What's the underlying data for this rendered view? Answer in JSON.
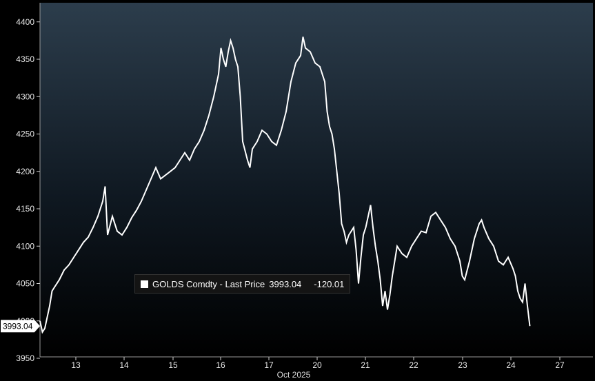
{
  "chart_data": {
    "type": "line",
    "xlabel": "Oct 2025",
    "ylim": [
      3950,
      4400
    ],
    "yticks": [
      3950,
      4000,
      4050,
      4100,
      4150,
      4200,
      4250,
      4300,
      4350,
      4400
    ],
    "ytick_labels": [
      "3950",
      "4000",
      "4050",
      "4100",
      "4150",
      "4200",
      "4250",
      "4300",
      "4350",
      "4400"
    ],
    "xticks": [
      "13",
      "14",
      "15",
      "16",
      "17",
      "20",
      "21",
      "22",
      "23",
      "24",
      "27"
    ],
    "legend": {
      "series": "GOLDS Comdty - Last Price",
      "last_price": "3993.04",
      "change": "-120.01"
    },
    "last_price_label": "3993.04",
    "series": [
      {
        "name": "GOLDS Comdty - Last Price",
        "color": "#ffffff",
        "points": [
          [
            0.0,
            4000
          ],
          [
            0.05,
            3985
          ],
          [
            0.1,
            3990
          ],
          [
            0.15,
            4005
          ],
          [
            0.2,
            4020
          ],
          [
            0.25,
            4040
          ],
          [
            0.3,
            4045
          ],
          [
            0.4,
            4055
          ],
          [
            0.5,
            4068
          ],
          [
            0.6,
            4075
          ],
          [
            0.7,
            4085
          ],
          [
            0.8,
            4095
          ],
          [
            0.9,
            4105
          ],
          [
            1.0,
            4112
          ],
          [
            1.1,
            4125
          ],
          [
            1.2,
            4140
          ],
          [
            1.3,
            4160
          ],
          [
            1.35,
            4180
          ],
          [
            1.4,
            4115
          ],
          [
            1.5,
            4140
          ],
          [
            1.6,
            4120
          ],
          [
            1.7,
            4115
          ],
          [
            1.8,
            4125
          ],
          [
            1.9,
            4138
          ],
          [
            2.0,
            4148
          ],
          [
            2.1,
            4160
          ],
          [
            2.2,
            4175
          ],
          [
            2.3,
            4190
          ],
          [
            2.4,
            4205
          ],
          [
            2.5,
            4190
          ],
          [
            2.6,
            4195
          ],
          [
            2.7,
            4200
          ],
          [
            2.8,
            4205
          ],
          [
            2.9,
            4215
          ],
          [
            3.0,
            4225
          ],
          [
            3.1,
            4215
          ],
          [
            3.2,
            4230
          ],
          [
            3.3,
            4240
          ],
          [
            3.4,
            4255
          ],
          [
            3.5,
            4275
          ],
          [
            3.6,
            4300
          ],
          [
            3.7,
            4330
          ],
          [
            3.75,
            4365
          ],
          [
            3.8,
            4350
          ],
          [
            3.85,
            4340
          ],
          [
            3.9,
            4360
          ],
          [
            3.95,
            4375
          ],
          [
            4.0,
            4365
          ],
          [
            4.05,
            4350
          ],
          [
            4.1,
            4340
          ],
          [
            4.15,
            4300
          ],
          [
            4.2,
            4240
          ],
          [
            4.3,
            4215
          ],
          [
            4.35,
            4205
          ],
          [
            4.4,
            4230
          ],
          [
            4.5,
            4240
          ],
          [
            4.6,
            4255
          ],
          [
            4.7,
            4250
          ],
          [
            4.8,
            4240
          ],
          [
            4.9,
            4235
          ],
          [
            5.0,
            4255
          ],
          [
            5.1,
            4280
          ],
          [
            5.2,
            4320
          ],
          [
            5.3,
            4345
          ],
          [
            5.4,
            4355
          ],
          [
            5.45,
            4380
          ],
          [
            5.5,
            4365
          ],
          [
            5.6,
            4360
          ],
          [
            5.7,
            4345
          ],
          [
            5.8,
            4340
          ],
          [
            5.9,
            4320
          ],
          [
            5.95,
            4280
          ],
          [
            6.0,
            4260
          ],
          [
            6.05,
            4250
          ],
          [
            6.1,
            4230
          ],
          [
            6.15,
            4200
          ],
          [
            6.2,
            4170
          ],
          [
            6.25,
            4130
          ],
          [
            6.3,
            4120
          ],
          [
            6.35,
            4105
          ],
          [
            6.4,
            4115
          ],
          [
            6.5,
            4125
          ],
          [
            6.55,
            4095
          ],
          [
            6.6,
            4050
          ],
          [
            6.65,
            4085
          ],
          [
            6.7,
            4115
          ],
          [
            6.75,
            4125
          ],
          [
            6.8,
            4140
          ],
          [
            6.85,
            4155
          ],
          [
            6.9,
            4125
          ],
          [
            6.95,
            4100
          ],
          [
            7.0,
            4080
          ],
          [
            7.05,
            4055
          ],
          [
            7.1,
            4020
          ],
          [
            7.15,
            4040
          ],
          [
            7.2,
            4015
          ],
          [
            7.25,
            4035
          ],
          [
            7.3,
            4060
          ],
          [
            7.35,
            4080
          ],
          [
            7.4,
            4100
          ],
          [
            7.5,
            4090
          ],
          [
            7.6,
            4085
          ],
          [
            7.7,
            4100
          ],
          [
            7.8,
            4110
          ],
          [
            7.9,
            4120
          ],
          [
            8.0,
            4118
          ],
          [
            8.1,
            4140
          ],
          [
            8.2,
            4145
          ],
          [
            8.3,
            4135
          ],
          [
            8.4,
            4125
          ],
          [
            8.5,
            4110
          ],
          [
            8.6,
            4100
          ],
          [
            8.7,
            4080
          ],
          [
            8.75,
            4060
          ],
          [
            8.8,
            4055
          ],
          [
            8.9,
            4080
          ],
          [
            9.0,
            4110
          ],
          [
            9.1,
            4130
          ],
          [
            9.15,
            4135
          ],
          [
            9.2,
            4125
          ],
          [
            9.3,
            4110
          ],
          [
            9.4,
            4100
          ],
          [
            9.5,
            4080
          ],
          [
            9.6,
            4075
          ],
          [
            9.7,
            4085
          ],
          [
            9.8,
            4070
          ],
          [
            9.85,
            4060
          ],
          [
            9.9,
            4040
          ],
          [
            9.95,
            4030
          ],
          [
            10.0,
            4025
          ],
          [
            10.05,
            4050
          ],
          [
            10.1,
            4020
          ],
          [
            10.15,
            3993.04
          ]
        ]
      }
    ]
  }
}
